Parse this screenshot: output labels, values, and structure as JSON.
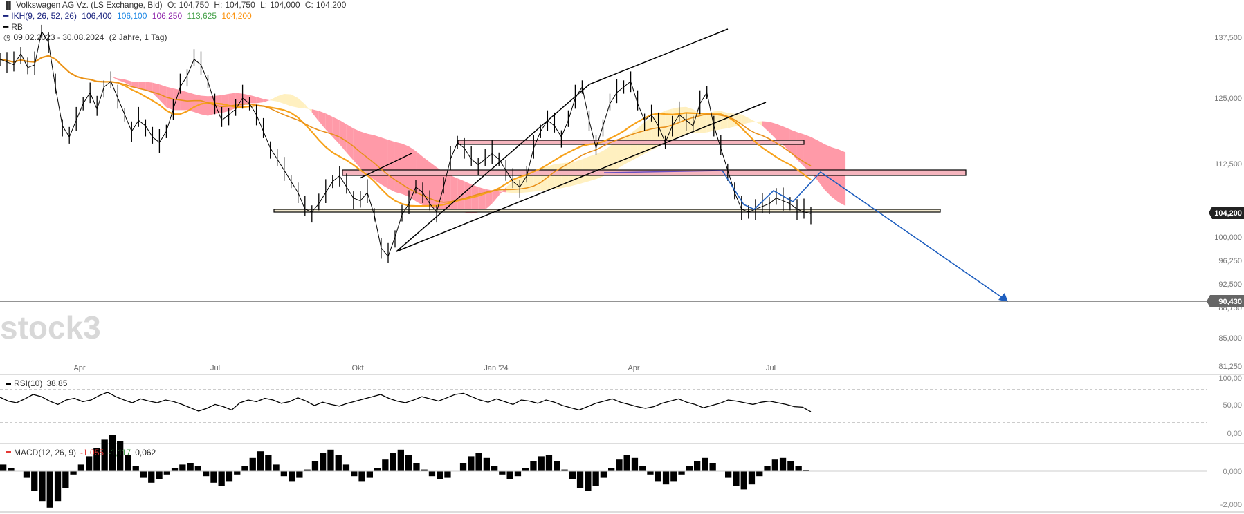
{
  "legend": {
    "instrument": "Volkswagen AG Vz. (LS Exchange, Bid)",
    "ohlc": {
      "o_label": "O:",
      "o": "104,750",
      "h_label": "H:",
      "h": "104,750",
      "l_label": "L:",
      "l": "104,000",
      "c_label": "C:",
      "c": "104,200"
    },
    "ikh": {
      "label": "IKH(9, 26, 52, 26)",
      "v1": "106,400",
      "v2": "106,100",
      "v3": "106,250",
      "v4": "113,625",
      "v5": "104,200"
    },
    "rb": "RB",
    "range": "09.02.2023 - 30.08.2024",
    "period": "(2 Jahre, 1 Tag)"
  },
  "colors": {
    "ikh_v1": "#1a237e",
    "ikh_v2": "#1e88e5",
    "ikh_v3": "#8e24aa",
    "ikh_v4": "#43a047",
    "ikh_v5": "#fb8c00",
    "price": "#000000",
    "ma": "#f7a21b",
    "cloud_red": "#ff9aa8",
    "cloud_yellow": "#fff0c0",
    "zone_fill": "#f5b5be",
    "arrow": "#1f5fbf",
    "macd_neg": "#e53935",
    "macd_pos": "#43a047"
  },
  "watermark": "stock3",
  "price_tags": {
    "last": "104,200",
    "target": "90,430"
  },
  "chart_data": [
    {
      "type": "line",
      "x_ticks": [
        "Apr",
        "Jul",
        "Okt",
        "Jan '24",
        "Apr",
        "Jul"
      ],
      "y_ticks": [
        "137,500",
        "125,000",
        "112,500",
        "104,200",
        "100,000",
        "96,250",
        "92,500",
        "90,430",
        "88,750",
        "85,000",
        "81,250"
      ],
      "ylim": [
        81.25,
        139.5
      ],
      "series": [
        {
          "name": "Volkswagen AG Vz.",
          "values": [
            132,
            131.5,
            131,
            133,
            130.5,
            131,
            137,
            135,
            127,
            120,
            118,
            121,
            124,
            126,
            123,
            127,
            128,
            125,
            122,
            119,
            121,
            120,
            118,
            117,
            119,
            123,
            127,
            129,
            132,
            131,
            128,
            124,
            121,
            122,
            123,
            125,
            124,
            122,
            119,
            116,
            114,
            112,
            110,
            108,
            105,
            104.5,
            106,
            108,
            110,
            111,
            109,
            107,
            106.5,
            108,
            104,
            98,
            96.5,
            100,
            104,
            106,
            109,
            108,
            106,
            104.5,
            109,
            114,
            117,
            116,
            114,
            113,
            114,
            115,
            114,
            112,
            110,
            109,
            111,
            116,
            119,
            121,
            120,
            118,
            121,
            125,
            127,
            121,
            116,
            120,
            124,
            126,
            127,
            128,
            124,
            121,
            122,
            120,
            117,
            120,
            122,
            121,
            120,
            124,
            126,
            120,
            116,
            112,
            108,
            105,
            104.5,
            105,
            105.5,
            106,
            107,
            106.5,
            106,
            105,
            104.5,
            104.2
          ]
        },
        {
          "name": "RSI",
          "values": [
            65,
            58,
            55,
            62,
            70,
            66,
            58,
            52,
            60,
            63,
            57,
            60,
            68,
            74,
            66,
            60,
            55,
            62,
            58,
            55,
            60,
            57,
            52,
            46,
            40,
            45,
            52,
            48,
            42,
            55,
            60,
            57,
            63,
            60,
            54,
            57,
            64,
            58,
            50,
            56,
            52,
            49,
            54,
            58,
            62,
            66,
            70,
            63,
            58,
            55,
            60,
            66,
            62,
            58,
            64,
            70,
            72,
            66,
            60,
            56,
            62,
            57,
            52,
            60,
            58,
            54,
            60,
            56,
            50,
            46,
            42,
            48,
            54,
            58,
            62,
            56,
            52,
            48,
            45,
            48,
            54,
            58,
            62,
            56,
            52,
            46,
            50,
            54,
            60,
            58,
            55,
            52,
            56,
            58,
            55,
            52,
            48,
            47,
            38.85
          ]
        }
      ]
    }
  ],
  "rsi": {
    "label": "RSI(10)",
    "value": "38,85",
    "y_ticks": [
      "100,00",
      "50,00",
      "0,00"
    ]
  },
  "macd": {
    "label": "MACD(12, 26, 9)",
    "v1": "-1,055",
    "v2": "-1,117",
    "v3": "0,062",
    "y_ticks": [
      "0,000",
      "-2,000"
    ],
    "values": [
      0.4,
      0.2,
      0.0,
      -0.4,
      -1.2,
      -1.8,
      -2.2,
      -1.8,
      -1.0,
      -0.2,
      0.4,
      0.9,
      1.4,
      1.9,
      2.2,
      1.8,
      1.0,
      0.3,
      -0.4,
      -0.7,
      -0.5,
      -0.2,
      0.2,
      0.4,
      0.5,
      0.3,
      -0.3,
      -0.7,
      -0.9,
      -0.6,
      -0.2,
      0.3,
      0.8,
      1.2,
      1.0,
      0.4,
      -0.3,
      -0.6,
      -0.4,
      0.1,
      0.6,
      1.1,
      1.3,
      1.0,
      0.4,
      -0.3,
      -0.6,
      -0.4,
      0.2,
      0.7,
      1.1,
      1.3,
      1.0,
      0.5,
      0.1,
      -0.3,
      -0.5,
      -0.4,
      0.0,
      0.5,
      0.9,
      1.1,
      0.8,
      0.3,
      -0.2,
      -0.5,
      -0.3,
      0.2,
      0.6,
      0.9,
      1.0,
      0.6,
      0.1,
      -0.5,
      -1.0,
      -1.2,
      -0.9,
      -0.4,
      0.2,
      0.7,
      1.0,
      0.8,
      0.3,
      -0.2,
      -0.6,
      -0.8,
      -0.6,
      -0.2,
      0.3,
      0.6,
      0.8,
      0.5,
      0.0,
      -0.4,
      -0.9,
      -1.1,
      -0.8,
      -0.3,
      0.3,
      0.7,
      0.8,
      0.6,
      0.3,
      0.062
    ]
  }
}
